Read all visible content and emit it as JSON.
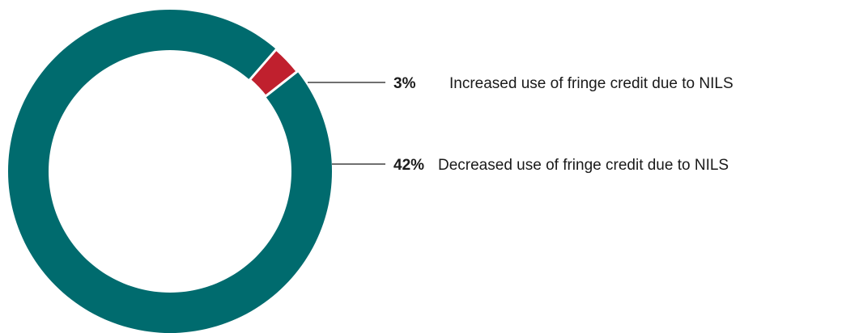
{
  "chart_data": {
    "type": "pie",
    "variant": "donut",
    "title": "",
    "slices": [
      {
        "label": "Increased use of fringe credit due to NILS",
        "value_label": "3%",
        "value": 3,
        "color": "#c0202e"
      },
      {
        "label": "Decreased use of fringe credit due to NILS",
        "value_label": "42%",
        "value": 42,
        "color": "#006b6e"
      }
    ],
    "ring_remainder_color": "#006b6e",
    "separator_color": "#ffffff",
    "legend": "callouts-right"
  }
}
